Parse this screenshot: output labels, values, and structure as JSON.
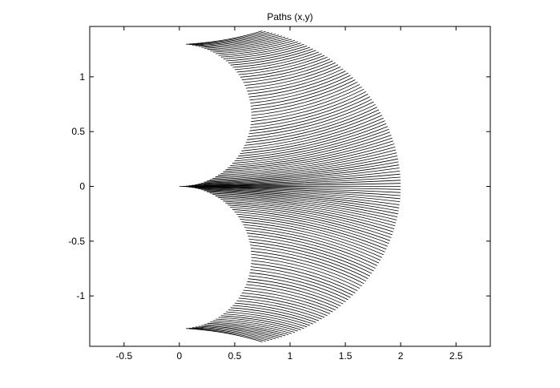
{
  "chart_data": {
    "type": "line",
    "title": "Paths (x,y)",
    "xlabel": "",
    "ylabel": "",
    "xlim": [
      -0.81,
      2.81
    ],
    "ylim": [
      -1.46,
      1.46
    ],
    "xticks": [
      -0.5,
      0,
      0.5,
      1,
      1.5,
      2,
      2.5
    ],
    "xtick_labels": [
      "-0.5",
      "0",
      "0.5",
      "1",
      "1.5",
      "2",
      "2.5"
    ],
    "yticks": [
      -1,
      -0.5,
      0,
      0.5,
      1
    ],
    "ytick_labels": [
      "-1",
      "-0.5",
      "0",
      "0.5",
      "1"
    ],
    "grid": false,
    "line_color": "#000000",
    "n_paths": 141,
    "inner_circle_radius": 0.65,
    "outer_extent_x": 2,
    "outer_extent_y": 1.42
  }
}
